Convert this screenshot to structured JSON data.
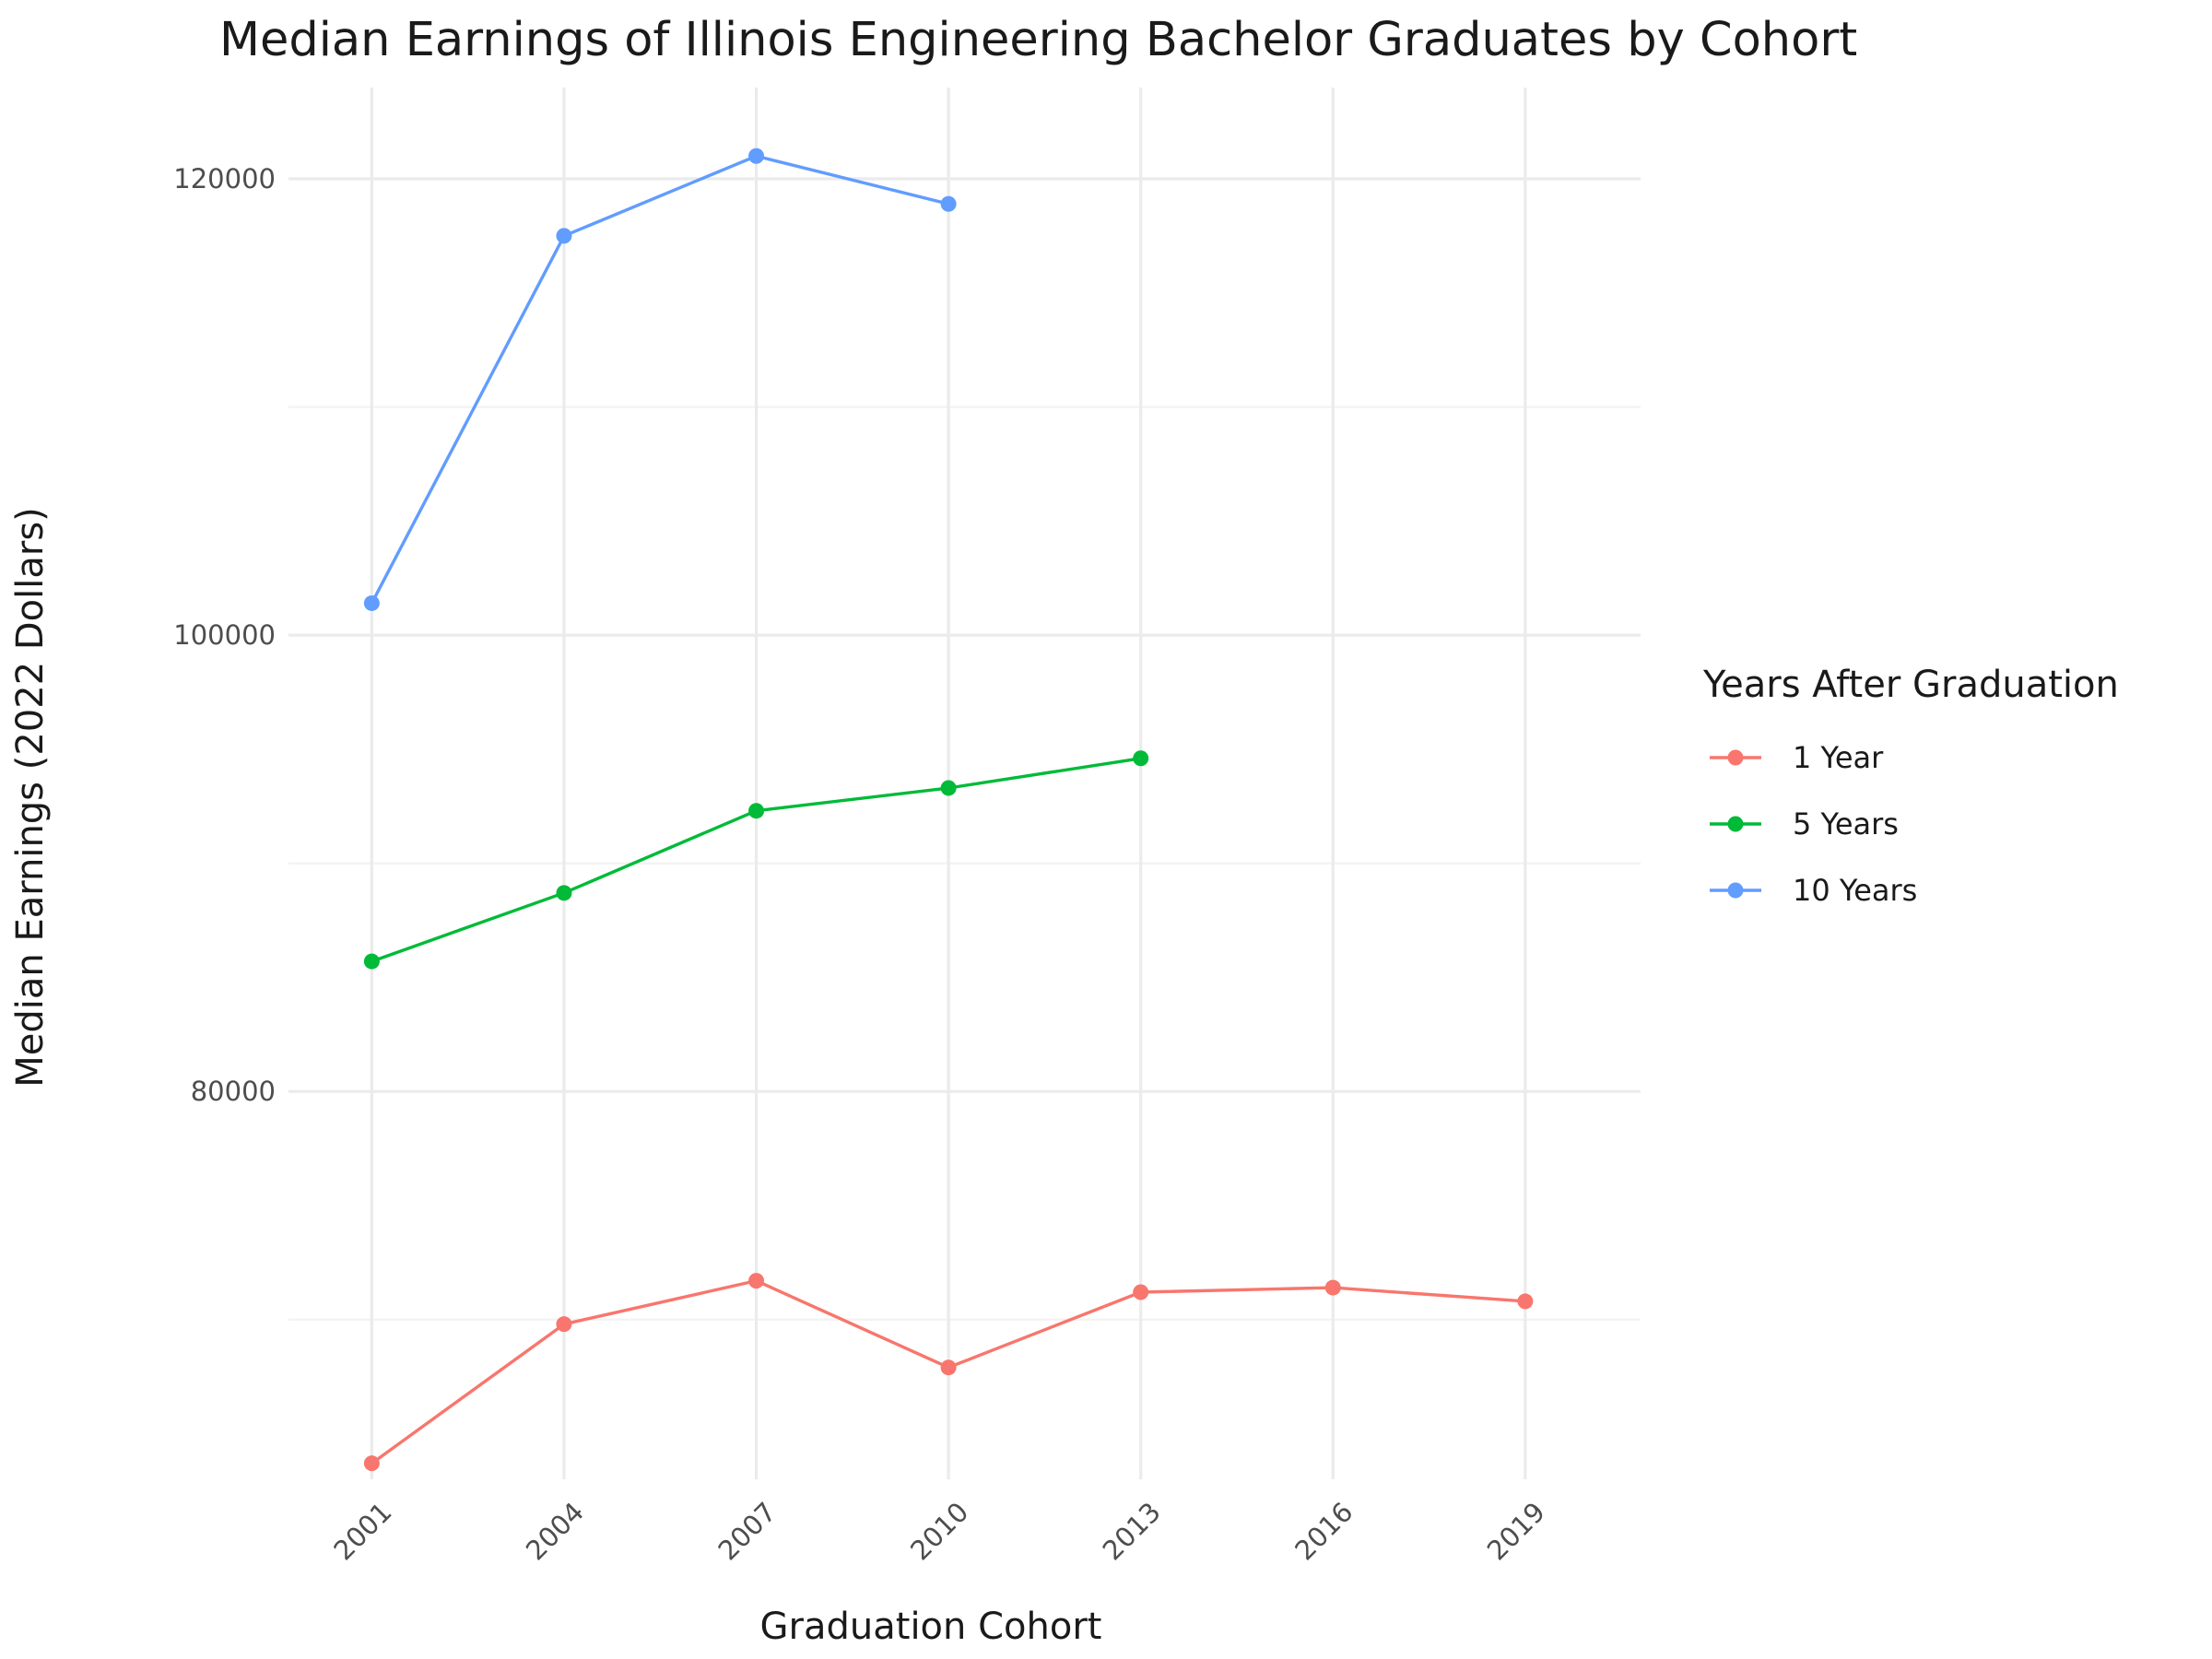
{
  "chart_data": {
    "type": "line",
    "title": "Median Earnings of Illinois Engineering Bachelor Graduates by Cohort",
    "xlabel": "Graduation Cohort",
    "ylabel": "Median Earnings (2022 Dollars)",
    "x_ticks": [
      "2001",
      "2004",
      "2007",
      "2010",
      "2013",
      "2016",
      "2019"
    ],
    "y_ticks": [
      "80000",
      "100000",
      "120000"
    ],
    "ylim": [
      63000,
      124000
    ],
    "xlim": [
      1999.7,
      2020.8
    ],
    "grid": true,
    "legend": {
      "title": "Years After Graduation",
      "position": "right"
    },
    "series": [
      {
        "name": "1 Year",
        "color": "#F8766D",
        "x": [
          2001,
          2004,
          2007,
          2010,
          2013,
          2016,
          2019
        ],
        "values": [
          63700,
          69800,
          71700,
          67900,
          71200,
          71400,
          70800
        ]
      },
      {
        "name": "5 Years",
        "color": "#00BA38",
        "x": [
          2001,
          2004,
          2007,
          2010,
          2013
        ],
        "values": [
          85700,
          88700,
          92300,
          93300,
          94600
        ]
      },
      {
        "name": "10 Years",
        "color": "#619CFF",
        "x": [
          2001,
          2004,
          2007,
          2010
        ],
        "values": [
          101400,
          117500,
          121000,
          118900
        ]
      }
    ]
  }
}
